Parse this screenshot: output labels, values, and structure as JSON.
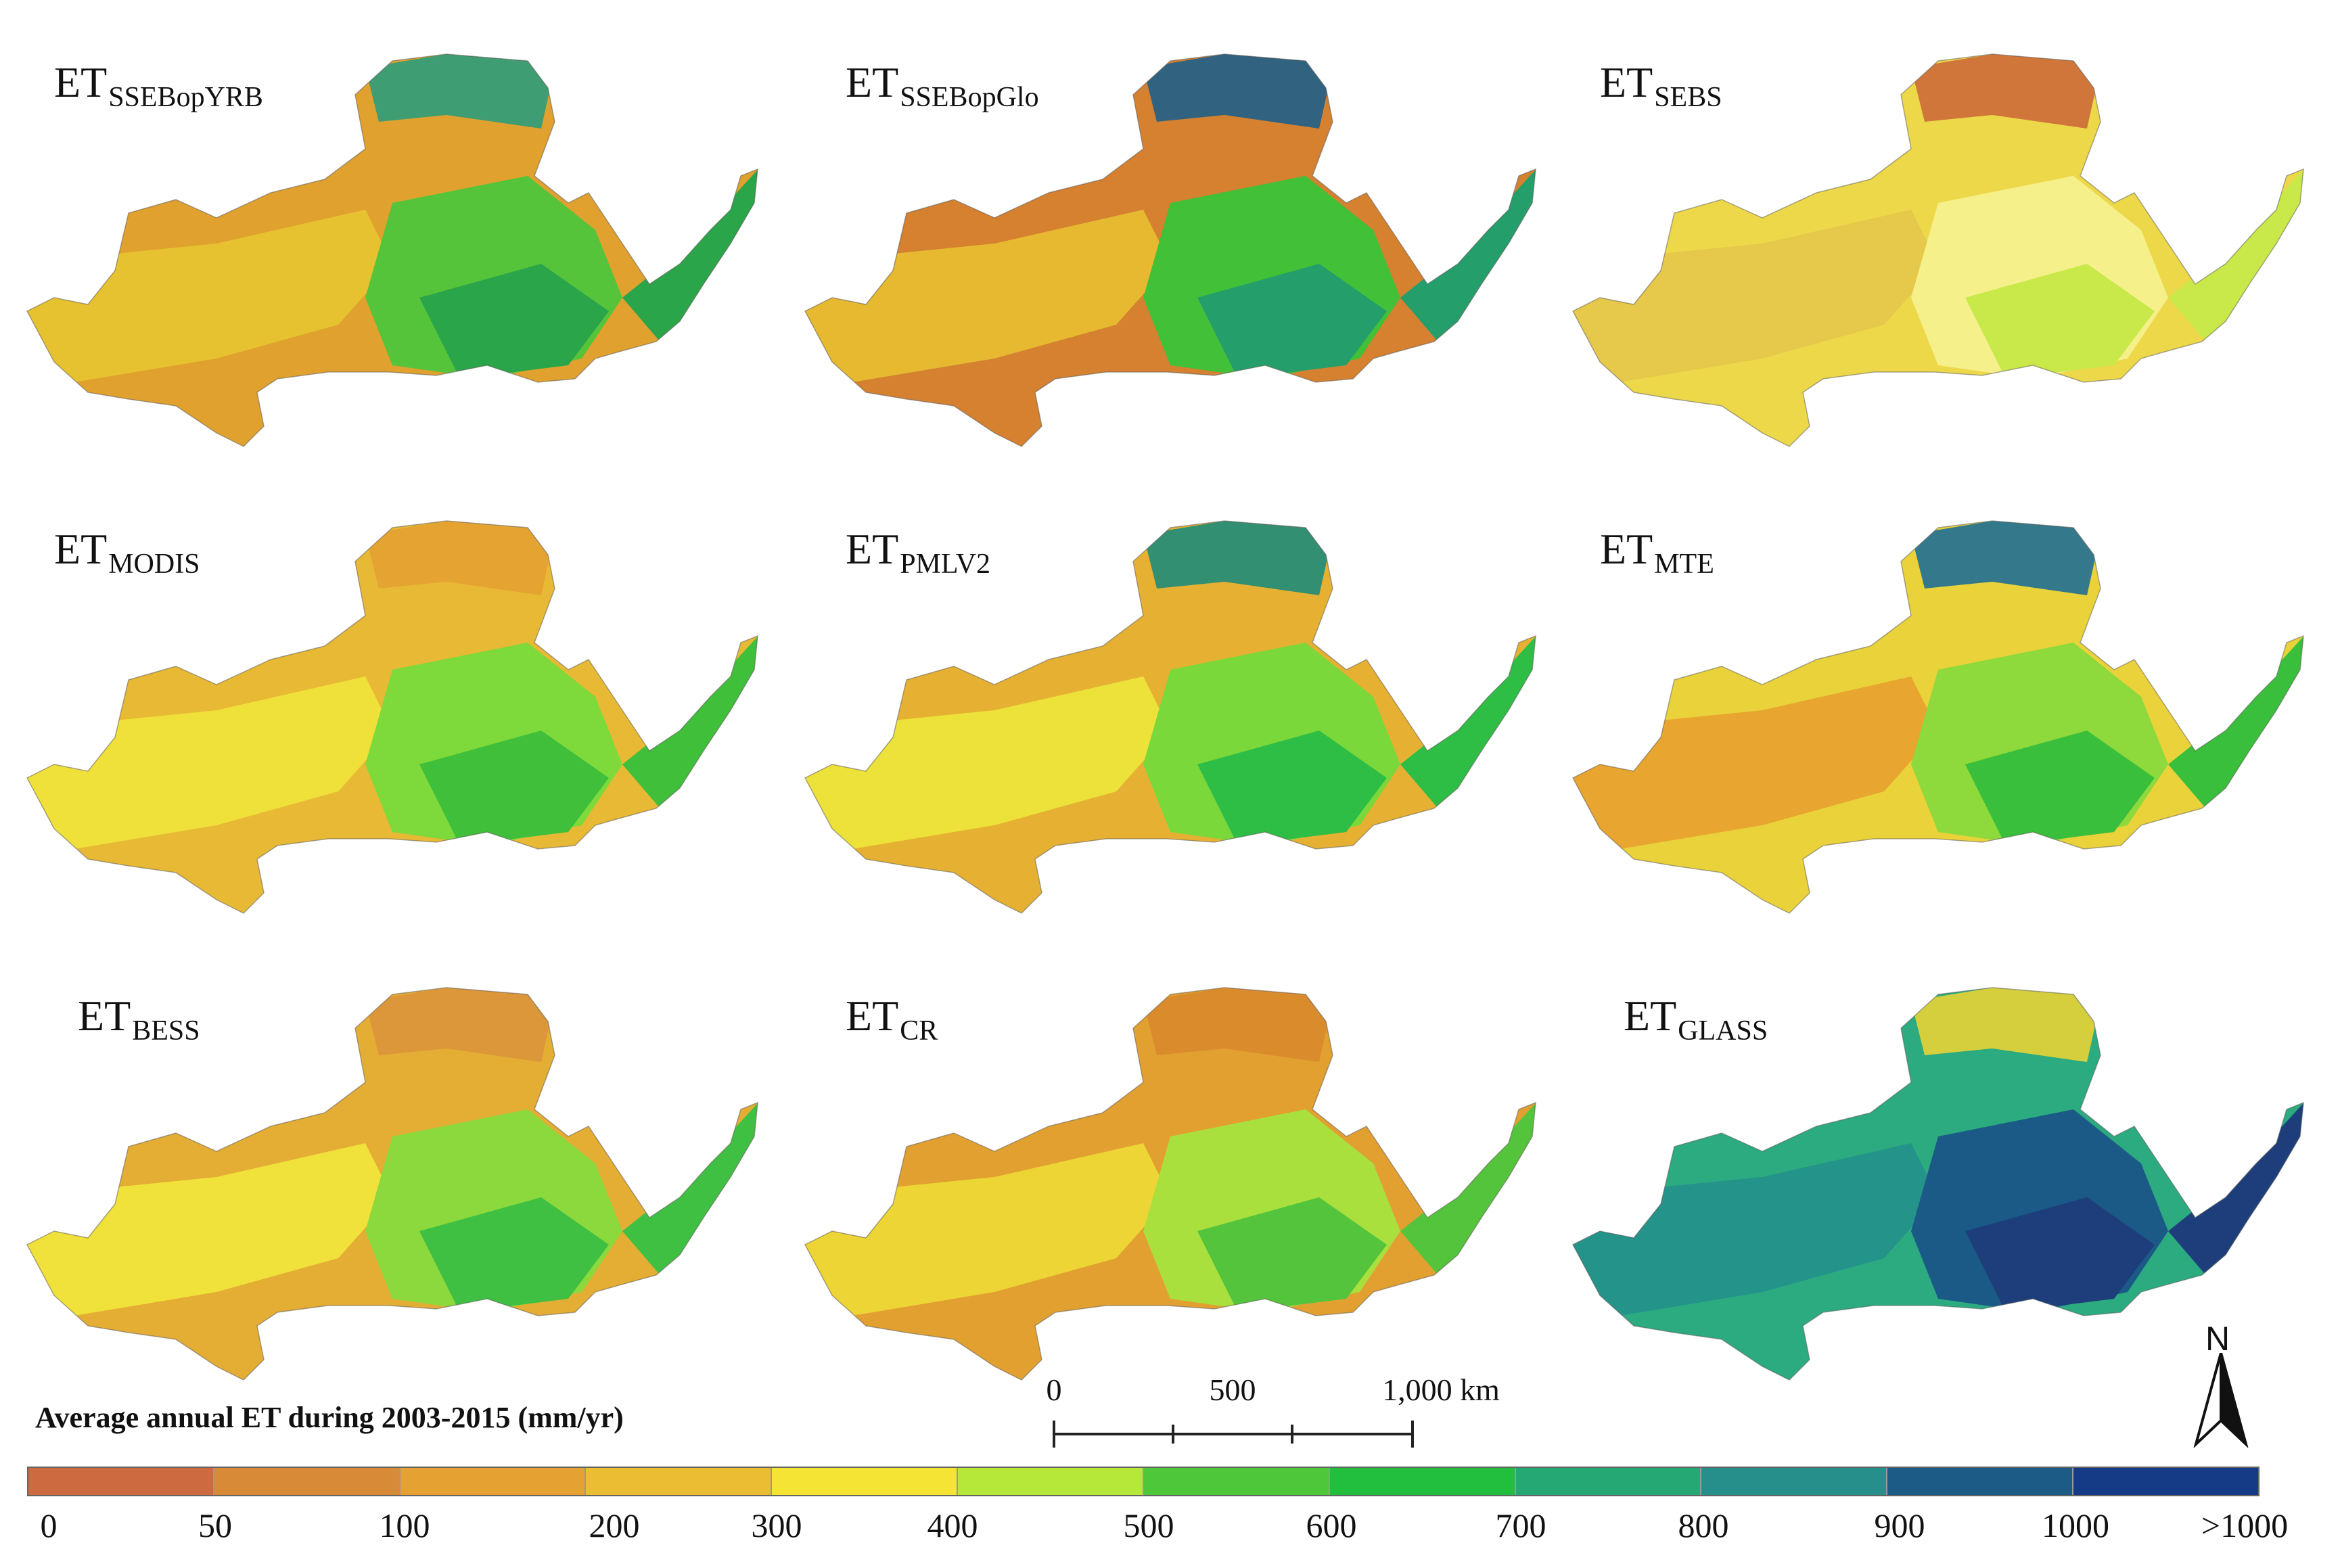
{
  "panels": [
    {
      "id": "ssebopyrb",
      "main": "ET",
      "sub": "SSEBopYRB",
      "colors": [
        "#e0a12e",
        "#e7c230",
        "#55c43a",
        "#2aa54a",
        "#2c9c7a"
      ]
    },
    {
      "id": "ssebopglo",
      "main": "ET",
      "sub": "SSEBopGlo",
      "colors": [
        "#d5812f",
        "#e6b930",
        "#42c037",
        "#249e6a",
        "#1f5f8a"
      ]
    },
    {
      "id": "sebs",
      "main": "ET",
      "sub": "SEBS",
      "colors": [
        "#edd84a",
        "#e6c84a",
        "#f5f08a",
        "#c9e84a",
        "#cd6b3a"
      ]
    },
    {
      "id": "modis",
      "main": "ET",
      "sub": "MODIS",
      "colors": [
        "#e8b935",
        "#f0e03a",
        "#7ed93a",
        "#3fbf3a",
        "#e4a232"
      ]
    },
    {
      "id": "pmlv2",
      "main": "ET",
      "sub": "PMLV2",
      "colors": [
        "#e6b132",
        "#ece23a",
        "#7ad83a",
        "#2fbe45",
        "#1e8c78"
      ]
    },
    {
      "id": "mte",
      "main": "ET",
      "sub": "MTE",
      "colors": [
        "#ead23a",
        "#e8a530",
        "#8ed93b",
        "#39bf3c",
        "#1f6f95"
      ]
    },
    {
      "id": "bess",
      "main": "ET",
      "sub": "BESS",
      "colors": [
        "#e4ad34",
        "#f1e13b",
        "#8bd93c",
        "#3fc043",
        "#d9953a"
      ]
    },
    {
      "id": "cr",
      "main": "ET",
      "sub": "CR",
      "colors": [
        "#e2a030",
        "#ecd535",
        "#a9e03d",
        "#54c43c",
        "#d98a2c"
      ]
    },
    {
      "id": "glass",
      "main": "ET",
      "sub": "GLASS",
      "colors": [
        "#2bab7f",
        "#24938a",
        "#1b5a86",
        "#1d3e7a",
        "#e8d236"
      ]
    }
  ],
  "legend": {
    "title": "Average annual ET during 2003-2015 (mm/yr)",
    "colors": [
      "#cd6a3f",
      "#d98a36",
      "#e5a131",
      "#ebbd33",
      "#f5e434",
      "#b6e83a",
      "#4fc73a",
      "#22bf3e",
      "#25a874",
      "#268f8b",
      "#1c5b86",
      "#153a86"
    ],
    "ticks": [
      "0",
      "50",
      "100",
      "200",
      "300",
      "400",
      "500",
      "600",
      "700",
      "800",
      "900",
      "1000",
      ">1000"
    ]
  },
  "scale_bar": {
    "labels": [
      "0",
      "500",
      "1,000 km"
    ]
  },
  "north_arrow": {
    "label": "N"
  }
}
